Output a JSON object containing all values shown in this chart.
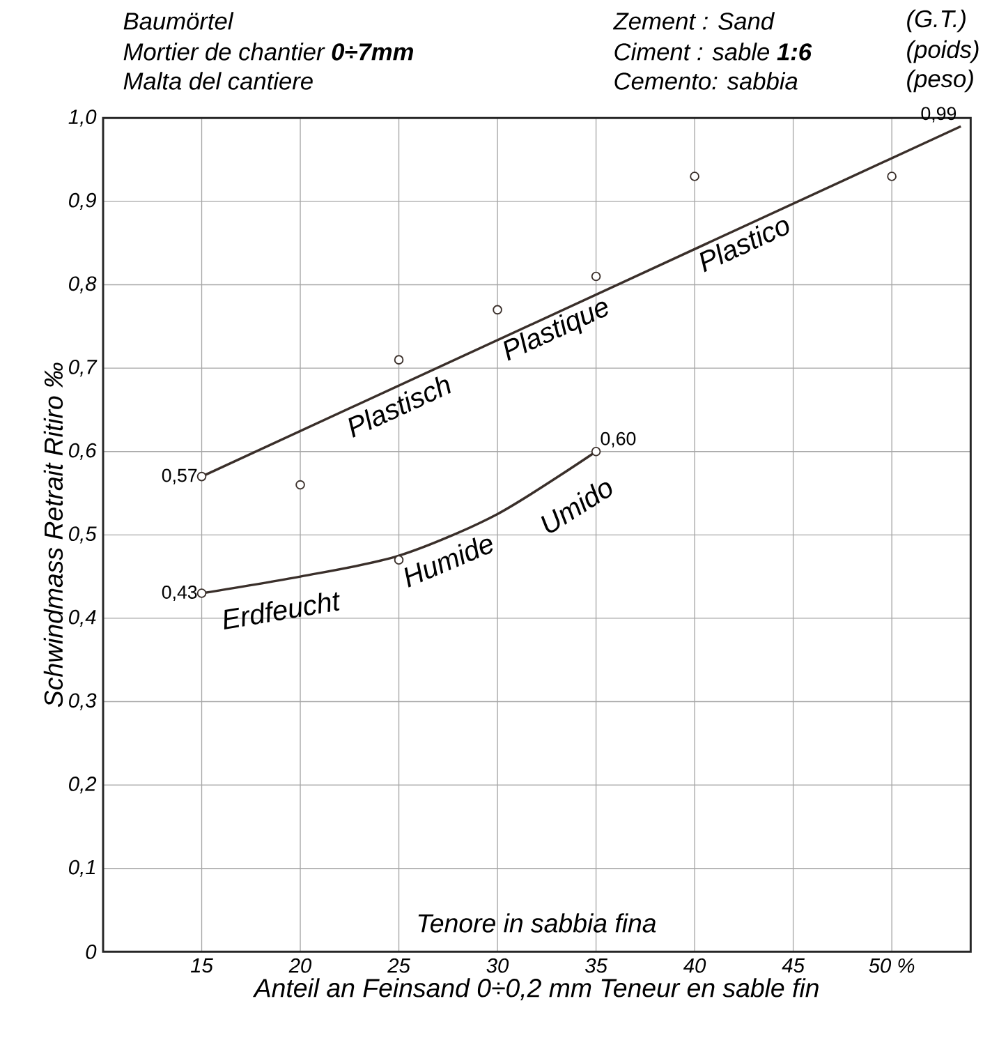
{
  "chart_data": {
    "type": "scatter",
    "xlabel": "Anteil an Feinsand      0÷0,2 mm      Teneur en sable fin",
    "ylabel": "Schwindmass        Retrait        Ritiro        ‰",
    "xlim": [
      10,
      54
    ],
    "ylim": [
      0,
      1.0
    ],
    "xticks": [
      15,
      20,
      25,
      30,
      35,
      40,
      45,
      {
        "value": 50,
        "label": "50 %"
      }
    ],
    "yticks": [
      {
        "value": 0,
        "label": "0"
      },
      {
        "value": 0.1,
        "label": "0,1"
      },
      {
        "value": 0.2,
        "label": "0,2"
      },
      {
        "value": 0.3,
        "label": "0,3"
      },
      {
        "value": 0.4,
        "label": "0,4"
      },
      {
        "value": 0.5,
        "label": "0,5"
      },
      {
        "value": 0.6,
        "label": "0,6"
      },
      {
        "value": 0.7,
        "label": "0,7"
      },
      {
        "value": 0.8,
        "label": "0,8"
      },
      {
        "value": 0.9,
        "label": "0,9"
      },
      {
        "value": 1.0,
        "label": "1,0"
      }
    ],
    "grid": true,
    "series": [
      {
        "color": "#3a2f2a",
        "marker": "circle",
        "x": [
          15,
          20,
          25,
          30,
          35,
          40,
          50
        ],
        "values": [
          0.57,
          0.56,
          0.71,
          0.77,
          0.81,
          0.93,
          0.93
        ]
      },
      {
        "color": "#3a2f2a",
        "marker": "circle",
        "x": [
          15,
          25,
          35
        ],
        "values": [
          0.43,
          0.47,
          0.6
        ]
      },
      {
        "type": "line",
        "color": "#3a2f2a",
        "marker": "none",
        "x": [
          15,
          53.5
        ],
        "values": [
          0.57,
          0.99
        ],
        "value_labels": [
          "0,57",
          "0,99"
        ]
      },
      {
        "type": "line",
        "color": "#3a2f2a",
        "marker": "none",
        "x": [
          15,
          20,
          25,
          30,
          35
        ],
        "values": [
          0.43,
          0.45,
          0.475,
          0.525,
          0.6
        ],
        "value_labels": [
          "0,43",
          null,
          null,
          null,
          "0,60"
        ]
      }
    ],
    "annotations": [
      "Baumörtel",
      "Mortier de chantier **0÷7mm**",
      "Malta del cantiere",
      "Zement : Sand",
      "(G.T.)",
      "Ciment : sable **1:6**",
      "(poids)",
      "Cemento: sabbia",
      "(peso)",
      "Tenore in sabbia fina",
      "Plastisch",
      "Plastique",
      "Plastico",
      "Erdfeucht",
      "Humide",
      "Umido"
    ]
  }
}
